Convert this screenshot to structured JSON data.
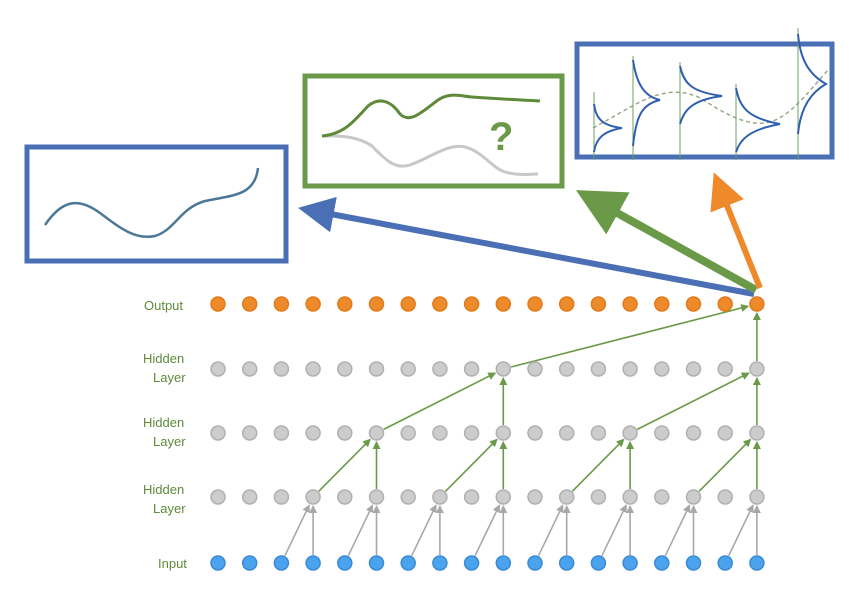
{
  "labels": {
    "output": "Output",
    "hidden": "Hidden",
    "layer": "Layer",
    "input": "Input"
  },
  "network": {
    "nodes_per_row": 18,
    "dilations": [
      1,
      2,
      4,
      8
    ]
  },
  "panels": {
    "question_mark": "?"
  },
  "colors": {
    "output_node": "#ee8a2a",
    "hidden_node": "#cccccc",
    "input_node": "#4aa3ec",
    "connection": "#6a9a48",
    "input_connection": "#a8a8a8",
    "blue_frame": "#4a6fb5",
    "green_frame": "#6a9a48",
    "blue_arrow": "#4a6fb5",
    "green_arrow": "#6a9a48",
    "orange_arrow": "#ee8a2a",
    "label": "#5e8a3a"
  }
}
